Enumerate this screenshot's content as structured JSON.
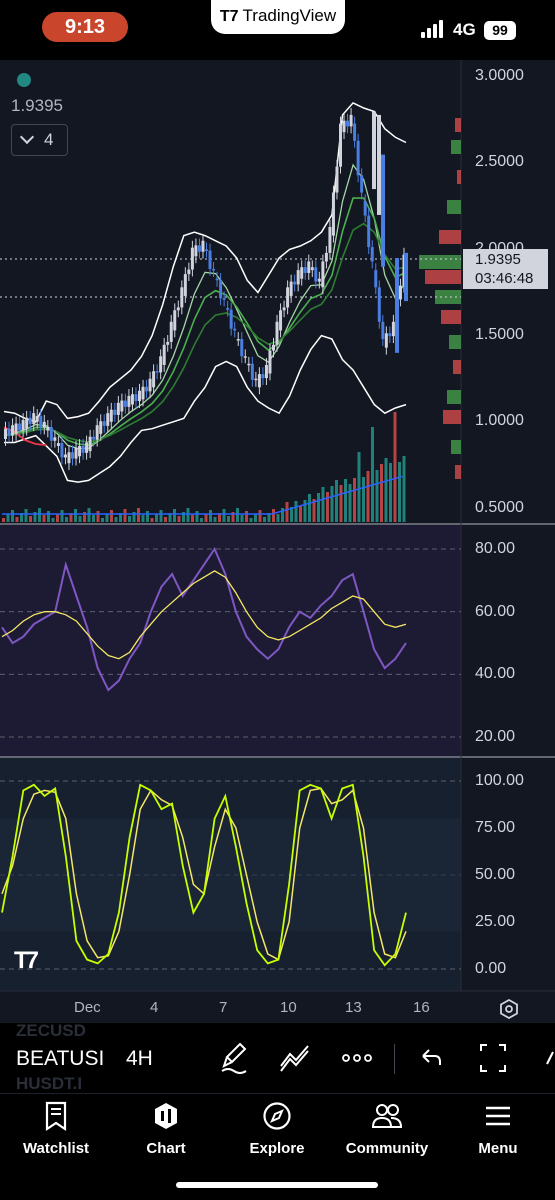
{
  "status_bar": {
    "time": "9:13",
    "app_name": "TradingView",
    "network": "4G",
    "battery": "99"
  },
  "chart": {
    "overlay_value": "1.9395",
    "collapse_count": "4",
    "price_tag": {
      "price": "1.9395",
      "countdown": "03:46:48"
    },
    "price_axis": [
      "3.0000",
      "2.5000",
      "2.0000",
      "1.5000",
      "1.0000",
      "0.5000"
    ],
    "rsi_axis": [
      "80.00",
      "60.00",
      "40.00",
      "20.00"
    ],
    "stoch_axis": [
      "100.00",
      "75.00",
      "50.00",
      "25.00",
      "0.00"
    ],
    "time_axis": [
      "Dec",
      "4",
      "7",
      "10",
      "13",
      "16"
    ],
    "colors": {
      "background": "#131722",
      "up_candle": "#d1d4dc",
      "down_candle": "#4a7ee0",
      "bollinger": "#ffffff",
      "ema_green": "#4caf50",
      "ema_light": "#a5d6a7",
      "ema_red": "#f23645",
      "rsi": "#7e57c2",
      "rsi_ma": "#f5e663",
      "stoch_k": "#c6ff00",
      "stoch_d": "#f5e663",
      "volume_up": "#26a69a",
      "volume_down": "#ef5350"
    }
  },
  "chart_data": [
    {
      "type": "candlestick",
      "symbol": "BEATUSDT",
      "interval": "4H",
      "ylim": [
        0.4,
        3.1
      ],
      "last_price": 1.9395,
      "dates": [
        "Dec",
        "4",
        "7",
        "10",
        "13",
        "16"
      ],
      "close_path": [
        0.92,
        0.95,
        0.98,
        1.02,
        0.97,
        0.88,
        0.78,
        0.82,
        0.85,
        0.95,
        1.02,
        1.08,
        1.12,
        1.15,
        1.22,
        1.35,
        1.55,
        1.75,
        1.98,
        2.02,
        1.85,
        1.68,
        1.5,
        1.35,
        1.22,
        1.3,
        1.55,
        1.75,
        1.85,
        1.9,
        1.8,
        2.1,
        2.7,
        2.75,
        2.3,
        1.9,
        1.45,
        1.55,
        1.9395
      ],
      "bollinger_upper": [
        1.06,
        1.05,
        1.02,
        1.0,
        1.12,
        1.1,
        1.02,
        1.03,
        1.05,
        1.12,
        1.2,
        1.25,
        1.3,
        1.38,
        1.5,
        1.68,
        1.9,
        2.08,
        2.1,
        2.08,
        2.05,
        2.02,
        1.95,
        1.82,
        1.75,
        1.85,
        1.95,
        2.0,
        2.02,
        2.05,
        2.1,
        2.2,
        2.78,
        2.85,
        2.82,
        2.8,
        2.7,
        2.65,
        2.62
      ],
      "bollinger_lower": [
        0.88,
        0.88,
        0.9,
        0.92,
        0.86,
        0.8,
        0.66,
        0.65,
        0.66,
        0.7,
        0.74,
        0.8,
        0.88,
        0.95,
        0.96,
        0.98,
        1.0,
        1.02,
        1.12,
        1.2,
        1.32,
        1.35,
        1.32,
        1.2,
        1.12,
        1.08,
        1.05,
        1.15,
        1.3,
        1.42,
        1.5,
        1.48,
        1.36,
        1.3,
        1.2,
        1.1,
        1.05,
        1.08,
        1.1
      ]
    },
    {
      "type": "line",
      "title": "RSI",
      "ylim": [
        15,
        85
      ],
      "series": [
        {
          "values": [
            55,
            50,
            52,
            56,
            58,
            60,
            75,
            65,
            55,
            42,
            35,
            38,
            45,
            50,
            60,
            68,
            72,
            65,
            70,
            75,
            80,
            72,
            60,
            52,
            48,
            45,
            48,
            55,
            60,
            58,
            62,
            65,
            70,
            72,
            60,
            48,
            42,
            45,
            50
          ]
        },
        {
          "values": [
            52,
            54,
            57,
            59,
            60,
            60,
            59,
            57,
            53,
            49,
            46,
            45,
            47,
            52,
            56,
            60,
            63,
            66,
            69,
            71,
            73,
            71,
            66,
            60,
            55,
            52,
            51,
            52,
            54,
            56,
            58,
            61,
            63,
            65,
            64,
            60,
            56,
            55,
            56
          ]
        }
      ]
    },
    {
      "type": "line",
      "title": "Stochastic",
      "ylim": [
        0,
        100
      ],
      "series": [
        {
          "values": [
            30,
            60,
            95,
            98,
            92,
            96,
            60,
            15,
            5,
            3,
            8,
            30,
            70,
            98,
            95,
            85,
            88,
            55,
            30,
            40,
            80,
            92,
            65,
            35,
            10,
            3,
            5,
            45,
            95,
            98,
            96,
            80,
            96,
            98,
            60,
            10,
            2,
            8,
            30
          ]
        },
        {
          "values": [
            40,
            55,
            80,
            93,
            95,
            94,
            80,
            40,
            15,
            6,
            7,
            20,
            50,
            85,
            95,
            90,
            87,
            70,
            45,
            40,
            65,
            85,
            75,
            50,
            25,
            8,
            5,
            25,
            75,
            95,
            96,
            88,
            90,
            95,
            75,
            30,
            8,
            6,
            20
          ]
        }
      ]
    }
  ],
  "toolbar": {
    "ghost_top": "ZECUSD",
    "symbol": "BEATUSI",
    "interval": "4H",
    "ghost_bottom": "HUSDT.I"
  },
  "nav": {
    "items": [
      {
        "label": "Watchlist",
        "icon": "bookmark-icon"
      },
      {
        "label": "Chart",
        "icon": "chart-icon"
      },
      {
        "label": "Explore",
        "icon": "compass-icon"
      },
      {
        "label": "Community",
        "icon": "people-icon"
      },
      {
        "label": "Menu",
        "icon": "hamburger-icon"
      }
    ]
  }
}
